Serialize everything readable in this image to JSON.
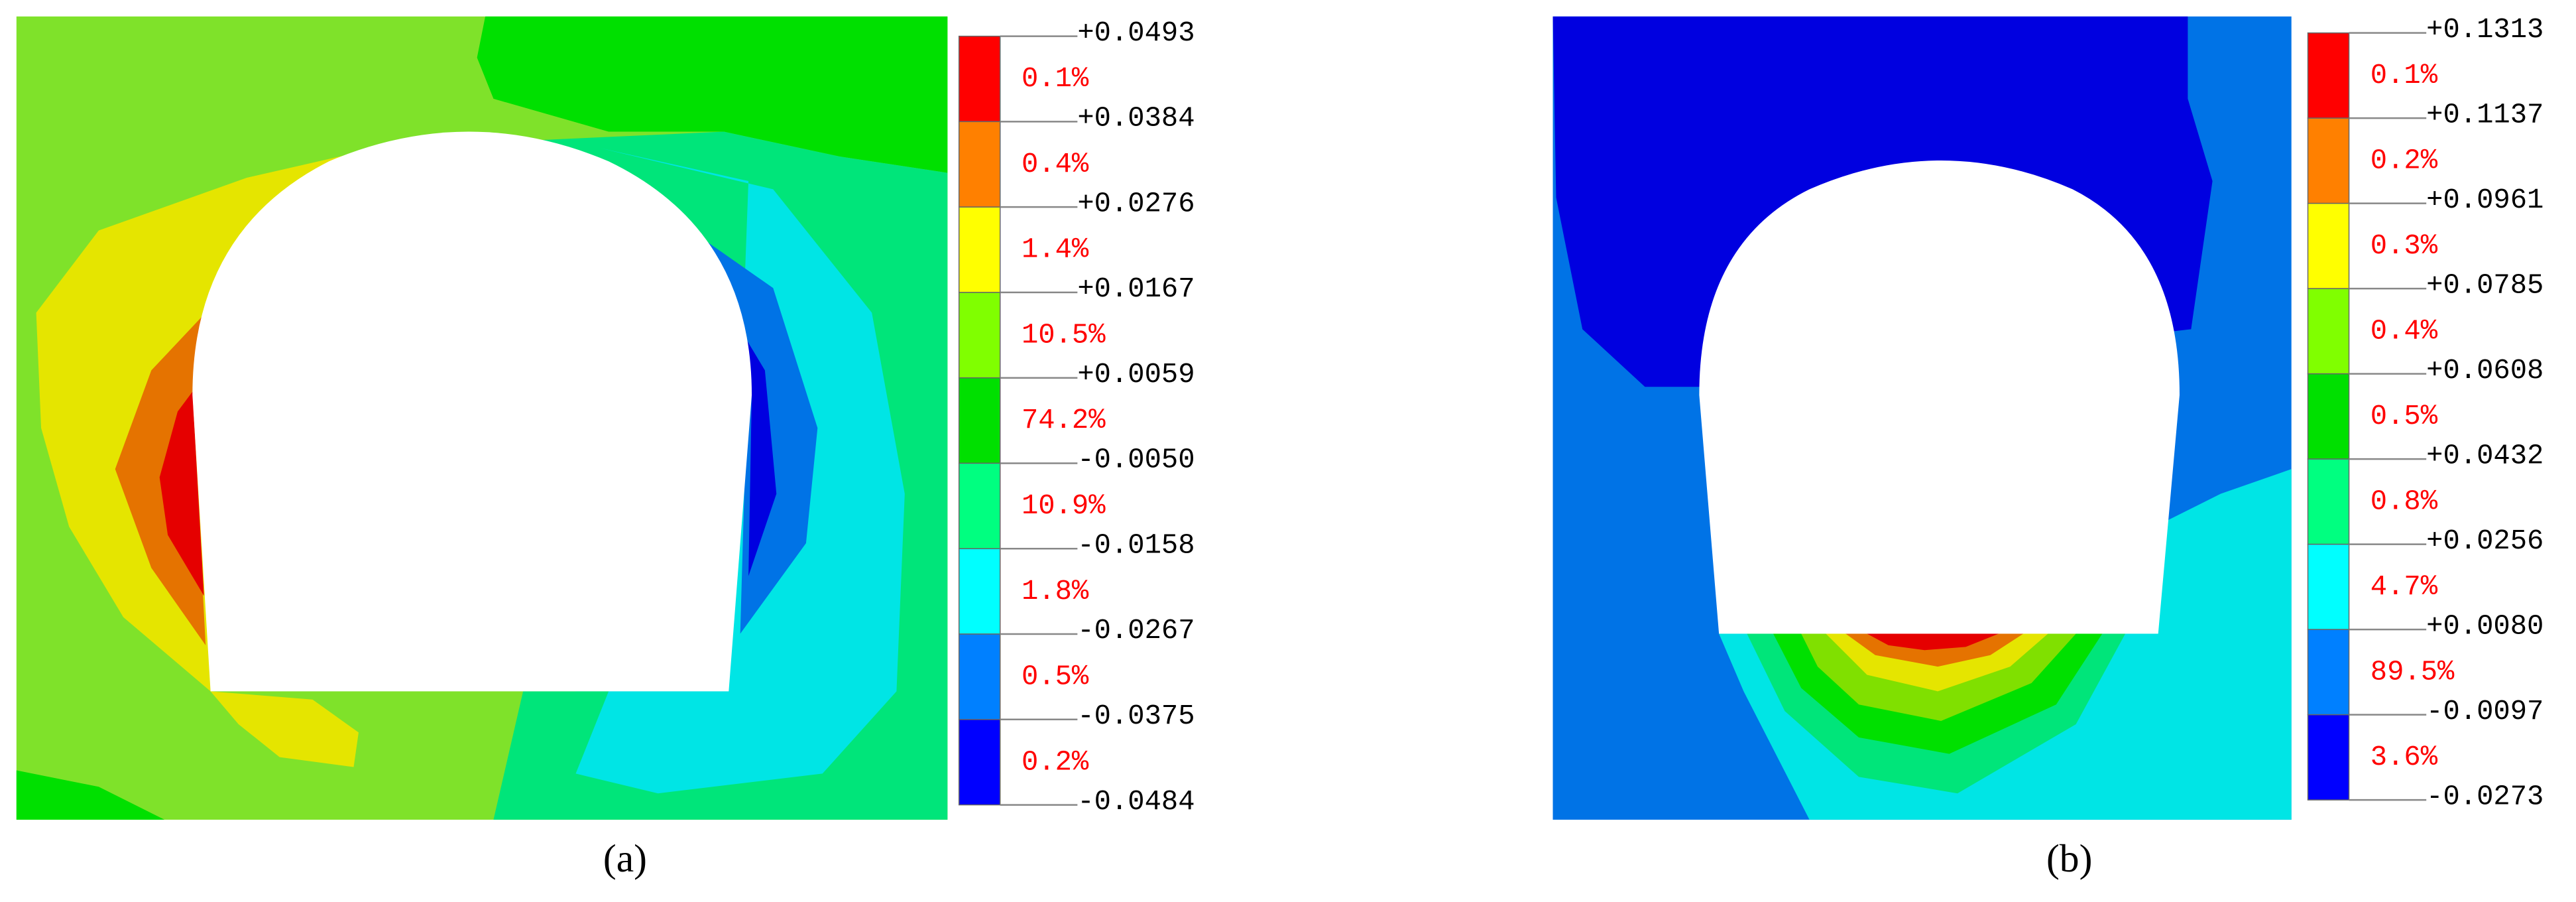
{
  "panels": [
    {
      "caption": "(a)",
      "levels": [
        "+0.0493",
        "+0.0384",
        "+0.0276",
        "+0.0167",
        "+0.0059",
        "-0.0050",
        "-0.0158",
        "-0.0267",
        "-0.0375",
        "-0.0484"
      ],
      "percents": [
        "0.1%",
        "0.4%",
        "1.4%",
        "10.5%",
        "74.2%",
        "10.9%",
        "1.8%",
        "0.5%",
        "0.2%"
      ],
      "colors": [
        "#ff0000",
        "#ff8000",
        "#ffff00",
        "#80ff00",
        "#00e000",
        "#00ff80",
        "#00ffff",
        "#0080ff",
        "#0000ff"
      ]
    },
    {
      "caption": "(b)",
      "levels": [
        "+0.1313",
        "+0.1137",
        "+0.0961",
        "+0.0785",
        "+0.0608",
        "+0.0432",
        "+0.0256",
        "+0.0080",
        "-0.0097",
        "-0.0273"
      ],
      "percents": [
        "0.1%",
        "0.2%",
        "0.3%",
        "0.4%",
        "0.5%",
        "0.8%",
        "4.7%",
        "89.5%",
        "3.6%"
      ],
      "colors": [
        "#ff0000",
        "#ff8000",
        "#ffff00",
        "#80ff00",
        "#00e000",
        "#00ff80",
        "#00ffff",
        "#0080ff",
        "#0000ff"
      ]
    }
  ]
}
